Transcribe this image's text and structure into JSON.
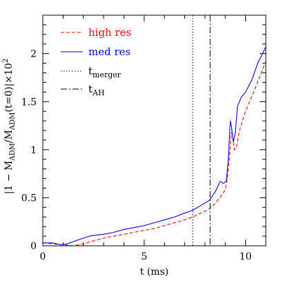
{
  "chart_data": {
    "type": "line",
    "xlabel": "t (ms)",
    "ylabel_parts": {
      "prefix": "|1 − M",
      "sub1": "ADM",
      "mid": "/M",
      "sub2": "ADM",
      "mid2": "(t=0)|×10",
      "sup": "2"
    },
    "xlim": [
      0,
      11
    ],
    "ylim": [
      0,
      2.4
    ],
    "xticks": [
      0,
      5,
      10
    ],
    "xtick_labels": [
      "0",
      "5",
      "10"
    ],
    "yticks": [
      0,
      0.5,
      1,
      1.5,
      2
    ],
    "ytick_labels": [
      "0",
      "0.5",
      "1",
      "1.5",
      "2"
    ],
    "x_minor_step": 1,
    "y_minor_step": 0.1,
    "vlines": [
      {
        "name": "t_merger",
        "x": 7.4,
        "style": "dotted"
      },
      {
        "name": "t_AH",
        "x": 8.25,
        "style": "dashdot"
      }
    ],
    "legend": [
      {
        "label": "high res",
        "color": "#ff0000",
        "style": "dashed"
      },
      {
        "label": "med res",
        "color": "#0000ff",
        "style": "solid"
      },
      {
        "base": "t",
        "sub": "merger",
        "color": "#000000",
        "style": "dotted"
      },
      {
        "base": "t",
        "sub": "AH",
        "color": "#000000",
        "style": "dashdot"
      }
    ],
    "legend_position": "top-left",
    "series": [
      {
        "name": "high res",
        "color": "#ff0000",
        "style": "dashed",
        "x": [
          0,
          0.5,
          1.0,
          1.5,
          2.0,
          2.5,
          3.0,
          3.5,
          4.0,
          4.5,
          5.0,
          5.5,
          6.0,
          6.5,
          7.0,
          7.4,
          7.8,
          8.2,
          8.5,
          8.8,
          9.0,
          9.1,
          9.2,
          9.3,
          9.35,
          9.45,
          9.55,
          9.7,
          10.0,
          10.5,
          11.0
        ],
        "y": [
          0.03,
          0.02,
          0.01,
          0.0,
          0.02,
          0.05,
          0.08,
          0.1,
          0.12,
          0.14,
          0.16,
          0.18,
          0.21,
          0.24,
          0.27,
          0.3,
          0.34,
          0.38,
          0.44,
          0.52,
          0.58,
          0.7,
          0.9,
          1.18,
          1.15,
          1.0,
          1.02,
          1.2,
          1.4,
          1.65,
          1.92
        ]
      },
      {
        "name": "med res",
        "color": "#0000ff",
        "style": "solid",
        "x": [
          0,
          0.5,
          0.9,
          1.2,
          1.6,
          2.0,
          2.3,
          2.6,
          3.0,
          3.5,
          4.0,
          4.5,
          5.0,
          5.5,
          6.0,
          6.5,
          7.0,
          7.4,
          7.8,
          8.2,
          8.5,
          8.75,
          8.9,
          9.05,
          9.15,
          9.25,
          9.3,
          9.4,
          9.5,
          9.6,
          9.8,
          10.0,
          10.3,
          10.6,
          11.0
        ],
        "y": [
          0.03,
          0.03,
          0.01,
          0.02,
          0.05,
          0.08,
          0.1,
          0.11,
          0.12,
          0.14,
          0.17,
          0.19,
          0.21,
          0.24,
          0.27,
          0.3,
          0.34,
          0.37,
          0.42,
          0.47,
          0.56,
          0.67,
          0.65,
          0.67,
          0.9,
          1.3,
          1.25,
          1.08,
          1.18,
          1.45,
          1.55,
          1.6,
          1.72,
          1.9,
          2.07
        ]
      }
    ]
  }
}
